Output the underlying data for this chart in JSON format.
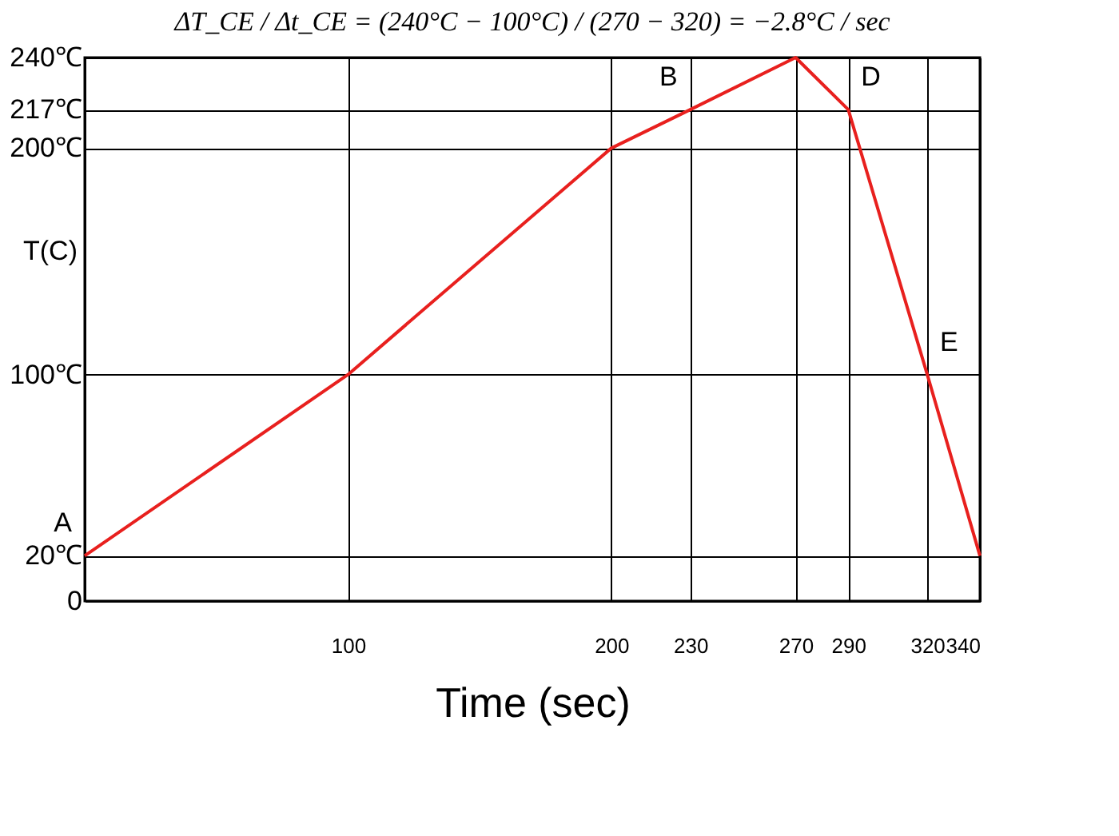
{
  "chart_data": {
    "type": "line",
    "title": "ΔT_CE / Δt_CE = (240°C − 100°C) / (270 − 320) = −2.8°C / sec",
    "xlabel": "Time (sec)",
    "ylabel": "T(C)",
    "x": [
      0,
      100,
      200,
      230,
      270,
      290,
      320,
      340
    ],
    "series": [
      {
        "color": "#e8201e",
        "values": [
          20,
          100,
          200,
          217,
          240,
          217,
          100,
          20
        ]
      }
    ],
    "xlim": [
      0,
      340
    ],
    "xticks": [
      100,
      200,
      230,
      270,
      290,
      320,
      340
    ],
    "ylim": [
      0,
      240
    ],
    "yticks": [
      {
        "value": 0,
        "label": "0"
      },
      {
        "value": 20,
        "label": "20℃"
      },
      {
        "value": 100,
        "label": "100℃"
      },
      {
        "value": 200,
        "label": "200℃"
      },
      {
        "value": 217,
        "label": "217℃"
      },
      {
        "value": 240,
        "label": "240℃"
      }
    ],
    "annotations": [
      {
        "text": "A",
        "x": 0,
        "y": 20
      },
      {
        "text": "B",
        "x": 230,
        "y": 217
      },
      {
        "text": "D",
        "x": 290,
        "y": 217
      },
      {
        "text": "E",
        "x": 320,
        "y": 100
      }
    ],
    "grid": true,
    "marker": "none",
    "line_style": "solid"
  }
}
